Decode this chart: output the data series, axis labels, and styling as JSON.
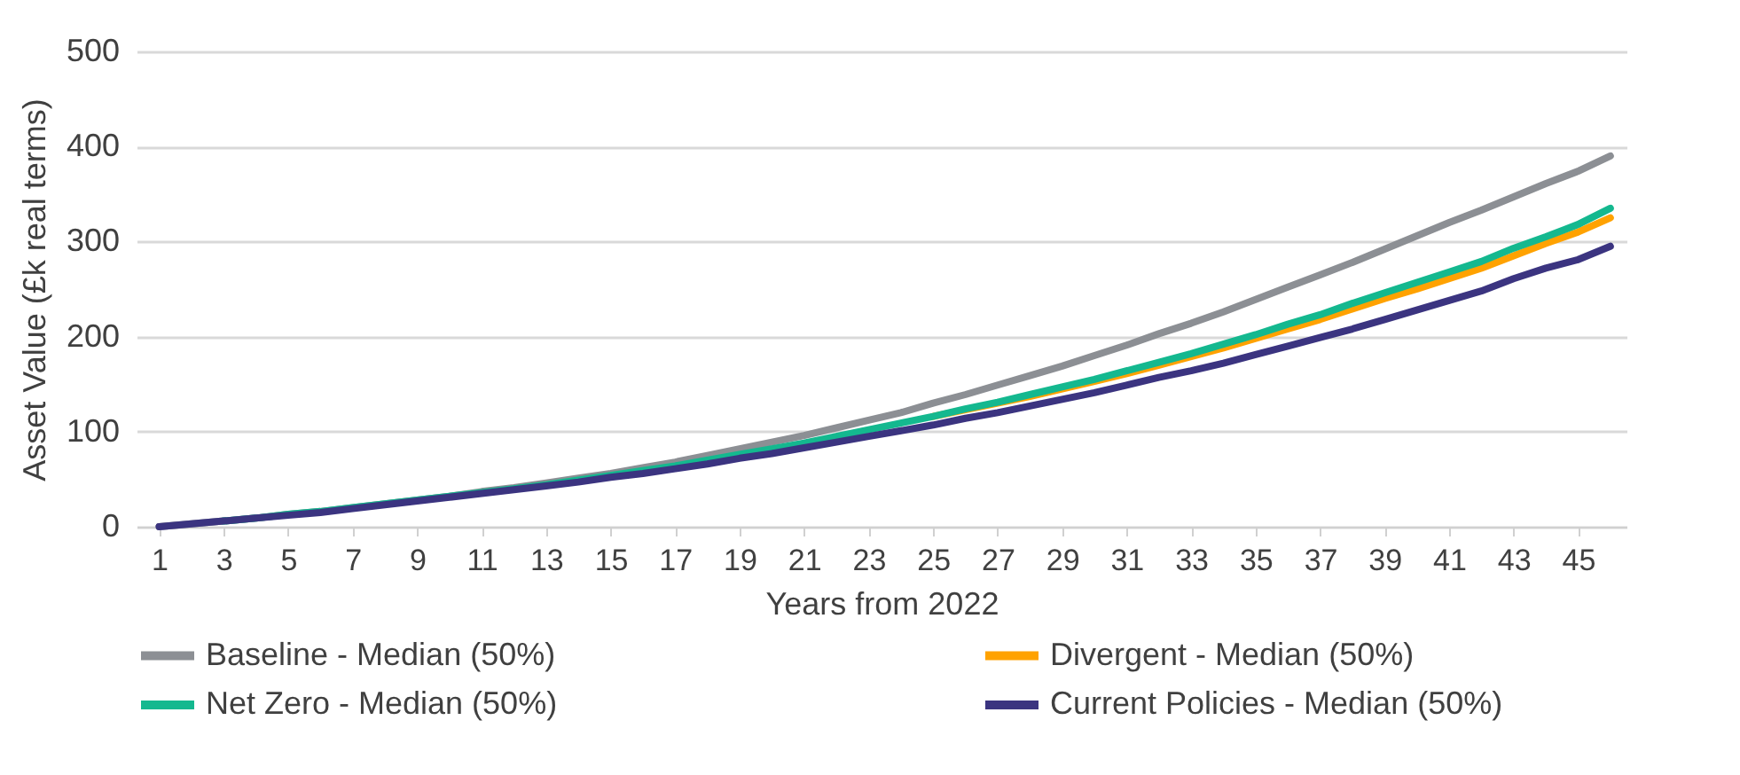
{
  "chart_data": {
    "type": "line",
    "xlabel": "Years from 2022",
    "ylabel": "Asset Value (£k real terms)",
    "x": [
      1,
      2,
      3,
      4,
      5,
      6,
      7,
      8,
      9,
      10,
      11,
      12,
      13,
      14,
      15,
      16,
      17,
      18,
      19,
      20,
      21,
      22,
      23,
      24,
      25,
      26,
      27,
      28,
      29,
      30,
      31,
      32,
      33,
      34,
      35,
      36,
      37,
      38,
      39,
      40,
      41,
      42,
      43,
      44,
      45,
      46
    ],
    "xlim": [
      0.3,
      46.5
    ],
    "xticks": [
      1,
      3,
      5,
      7,
      9,
      11,
      13,
      15,
      17,
      19,
      21,
      23,
      25,
      27,
      29,
      31,
      33,
      35,
      37,
      39,
      41,
      43,
      45
    ],
    "ylim": [
      0,
      500
    ],
    "yticks": [
      0,
      100,
      200,
      300,
      400,
      500
    ],
    "grid": "y",
    "legend": "bottom",
    "marker": "none",
    "line_style": "solid",
    "series": [
      {
        "name": "Baseline - Median (50%)",
        "color": "#8c8f94",
        "values": [
          0,
          3,
          6,
          9,
          13,
          16,
          20,
          24,
          28,
          32,
          37,
          41,
          46,
          51,
          56,
          62,
          68,
          75,
          82,
          89,
          96,
          104,
          112,
          120,
          130,
          139,
          149,
          159,
          169,
          180,
          191,
          203,
          214,
          226,
          239,
          252,
          265,
          278,
          292,
          306,
          320,
          333,
          347,
          361,
          374,
          390
        ]
      },
      {
        "name": "Divergent - Median (50%)",
        "color": "#ffa200",
        "values": [
          null,
          null,
          null,
          null,
          null,
          null,
          null,
          null,
          null,
          null,
          null,
          null,
          null,
          null,
          null,
          null,
          null,
          null,
          null,
          null,
          null,
          null,
          null,
          null,
          116,
          123,
          130,
          137,
          145,
          153,
          161,
          170,
          179,
          188,
          198,
          208,
          218,
          229,
          240,
          250,
          261,
          272,
          285,
          298,
          310,
          325
        ]
      },
      {
        "name": "Net Zero - Median (50%)",
        "color": "#14b88f",
        "values": [
          null,
          null,
          6,
          9,
          13,
          16,
          20,
          24,
          28,
          32,
          36,
          40,
          44,
          49,
          54,
          59,
          64,
          70,
          76,
          82,
          88,
          95,
          102,
          109,
          116,
          124,
          131,
          139,
          147,
          155,
          164,
          173,
          182,
          192,
          202,
          213,
          223,
          235,
          246,
          257,
          268,
          279,
          293,
          305,
          318,
          335
        ]
      },
      {
        "name": "Current Policies - Median (50%)",
        "color": "#3b3480",
        "values": [
          0,
          3,
          6,
          9,
          12,
          15,
          19,
          23,
          27,
          31,
          35,
          39,
          43,
          47,
          52,
          56,
          61,
          66,
          72,
          77,
          83,
          89,
          95,
          101,
          107,
          114,
          120,
          127,
          134,
          141,
          149,
          157,
          164,
          172,
          181,
          190,
          199,
          208,
          218,
          228,
          238,
          248,
          261,
          272,
          281,
          295
        ]
      }
    ]
  }
}
